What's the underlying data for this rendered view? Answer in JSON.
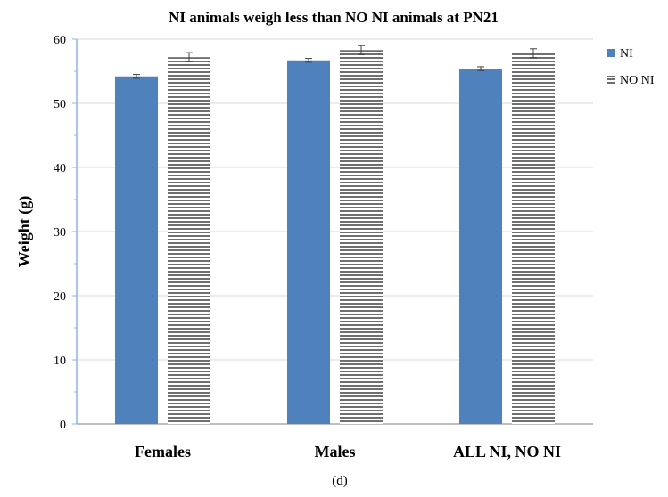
{
  "chart_data": {
    "type": "bar",
    "title": "NI animals weigh less than NO NI animals at PN21",
    "xlabel": "",
    "ylabel": "Weight (g)",
    "caption": "(d)",
    "categories": [
      "Females",
      "Males",
      "ALL NI, NO NI"
    ],
    "series": [
      {
        "name": "NI",
        "values": [
          54.2,
          56.7,
          55.4
        ],
        "errors": [
          0.3,
          0.3,
          0.3
        ],
        "color": "#4f81bd",
        "pattern": "solid"
      },
      {
        "name": "NO NI",
        "values": [
          57.2,
          58.3,
          57.8
        ],
        "errors": [
          0.7,
          0.7,
          0.7
        ],
        "color": "#7f7f7f",
        "pattern": "horizontal-stripes"
      }
    ],
    "ylim": [
      0,
      60
    ],
    "yticks": [
      0,
      10,
      20,
      30,
      40,
      50,
      60
    ],
    "grid": true,
    "legend_position": "right"
  }
}
